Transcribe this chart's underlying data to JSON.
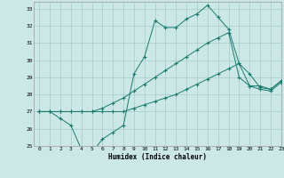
{
  "title": "",
  "xlabel": "Humidex (Indice chaleur)",
  "background_color": "#cce8e6",
  "grid_color": "#aad0ce",
  "line_color": "#1a7a6e",
  "xlim": [
    -0.5,
    23
  ],
  "ylim": [
    25,
    33.4
  ],
  "yticks": [
    25,
    26,
    27,
    28,
    29,
    30,
    31,
    32,
    33
  ],
  "xticks": [
    0,
    1,
    2,
    3,
    4,
    5,
    6,
    7,
    8,
    9,
    10,
    11,
    12,
    13,
    14,
    15,
    16,
    17,
    18,
    19,
    20,
    21,
    22,
    23
  ],
  "hours": [
    0,
    1,
    2,
    3,
    4,
    5,
    6,
    7,
    8,
    9,
    10,
    11,
    12,
    13,
    14,
    15,
    16,
    17,
    18,
    19,
    20,
    21,
    22,
    23
  ],
  "line1": [
    27.0,
    27.0,
    26.6,
    26.2,
    24.8,
    24.6,
    25.4,
    25.8,
    26.2,
    29.2,
    30.2,
    32.3,
    31.9,
    31.9,
    32.4,
    32.7,
    33.2,
    32.5,
    31.8,
    29.8,
    29.2,
    28.4,
    28.3,
    28.8
  ],
  "line2": [
    27.0,
    27.0,
    27.0,
    27.0,
    27.0,
    27.0,
    27.2,
    27.5,
    27.8,
    28.2,
    28.6,
    29.0,
    29.4,
    29.8,
    30.2,
    30.6,
    31.0,
    31.3,
    31.6,
    29.0,
    28.5,
    28.5,
    28.3,
    28.8
  ],
  "line3": [
    27.0,
    27.0,
    27.0,
    27.0,
    27.0,
    27.0,
    27.0,
    27.0,
    27.0,
    27.2,
    27.4,
    27.6,
    27.8,
    28.0,
    28.3,
    28.6,
    28.9,
    29.2,
    29.5,
    29.8,
    28.5,
    28.3,
    28.2,
    28.7
  ],
  "fig_width": 3.2,
  "fig_height": 2.0,
  "dpi": 100
}
